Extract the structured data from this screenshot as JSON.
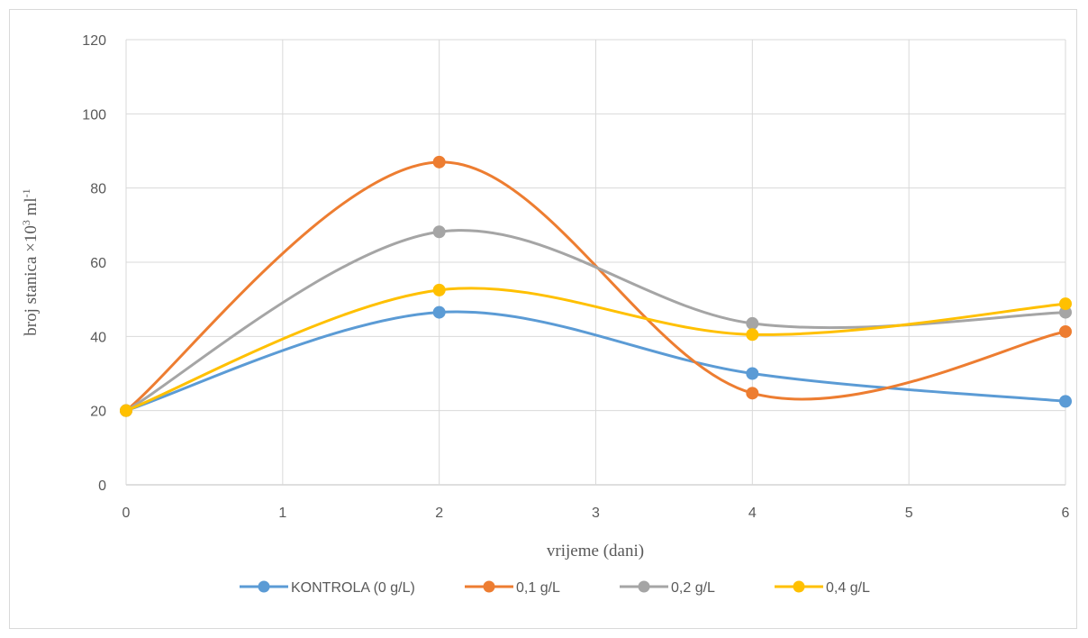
{
  "chart_data": {
    "type": "line",
    "smooth": true,
    "x": [
      0,
      2,
      4,
      6
    ],
    "xlabel": "vrijeme (dani)",
    "ylabel": {
      "main": "broj stanica ×10",
      "sup1": "3",
      "mid": " ml",
      "sup2": "-1"
    },
    "xlim": [
      0,
      6
    ],
    "ylim": [
      0,
      120
    ],
    "xticks": [
      "0",
      "1",
      "2",
      "3",
      "4",
      "5",
      "6"
    ],
    "yticks": [
      "0",
      "20",
      "40",
      "60",
      "80",
      "100",
      "120"
    ],
    "grid": true,
    "legend_position": "bottom",
    "series": [
      {
        "name": "KONTROLA (0 g/L)",
        "color": "#5b9bd5",
        "values": [
          20,
          46.5,
          30,
          22.5
        ]
      },
      {
        "name": "0,1 g/L",
        "color": "#ed7d31",
        "values": [
          20,
          87,
          24.7,
          41.3
        ]
      },
      {
        "name": "0,2 g/L",
        "color": "#a5a5a5",
        "values": [
          20,
          68.2,
          43.5,
          46.5
        ]
      },
      {
        "name": "0,4 g/L",
        "color": "#ffc000",
        "values": [
          20,
          52.5,
          40.5,
          48.8
        ]
      }
    ]
  }
}
